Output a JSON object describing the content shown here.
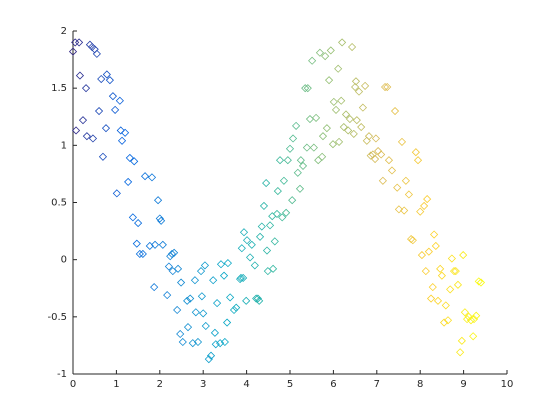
{
  "chart_data": {
    "type": "scatter",
    "marker": "diamond",
    "colormap": [
      "#352a87",
      "#0363e1",
      "#1485d4",
      "#06a7c6",
      "#38b99e",
      "#92bf73",
      "#d9ba56",
      "#fcce2e",
      "#f9fb0e"
    ],
    "xlim": [
      0,
      10
    ],
    "ylim": [
      -1,
      2
    ],
    "xticks": [
      0,
      1,
      2,
      3,
      4,
      5,
      6,
      7,
      8,
      9,
      10
    ],
    "yticks": [
      -1,
      -0.5,
      0,
      0.5,
      1,
      1.5,
      2
    ],
    "x": [
      0,
      0.05,
      0.14,
      0.39,
      0.44,
      0.5,
      0.55,
      0.07,
      0.16,
      0.3,
      0.23,
      0.32,
      0.46,
      0.6,
      0.65,
      0.78,
      0.85,
      0.69,
      0.76,
      0.92,
      0.97,
      1.08,
      1.01,
      1.1,
      1.2,
      1.13,
      1.27,
      1.31,
      1.41,
      1.38,
      1.47,
      1.5,
      1.54,
      1.61,
      1.66,
      1.77,
      1.82,
      1.87,
      1.89,
      1.96,
      2.0,
      2.03,
      2.07,
      2.17,
      2.21,
      2.24,
      2.28,
      2.33,
      2.3,
      2.4,
      2.42,
      2.47,
      2.49,
      2.53,
      2.63,
      2.65,
      2.7,
      2.76,
      2.81,
      2.83,
      2.88,
      2.95,
      2.97,
      3.0,
      3.04,
      3.06,
      3.13,
      3.18,
      3.23,
      3.27,
      3.29,
      3.32,
      3.39,
      3.41,
      3.48,
      3.5,
      3.55,
      3.57,
      3.62,
      3.71,
      3.76,
      3.85,
      3.87,
      3.92,
      3.89,
      3.94,
      3.99,
      4.01,
      4.08,
      4.12,
      4.19,
      4.22,
      4.26,
      4.29,
      4.31,
      4.35,
      4.4,
      4.45,
      4.47,
      4.49,
      4.54,
      4.59,
      4.61,
      4.65,
      4.7,
      4.72,
      4.77,
      4.82,
      4.86,
      4.91,
      4.95,
      5.0,
      5.05,
      5.07,
      5.14,
      5.18,
      5.23,
      5.25,
      5.3,
      5.35,
      5.39,
      5.41,
      5.46,
      5.51,
      5.55,
      5.6,
      5.65,
      5.69,
      5.74,
      5.76,
      5.81,
      5.85,
      5.9,
      5.94,
      5.99,
      6.01,
      6.06,
      6.11,
      6.13,
      6.18,
      6.2,
      6.24,
      6.29,
      6.34,
      6.38,
      6.43,
      6.47,
      6.5,
      6.54,
      6.52,
      6.59,
      6.64,
      6.68,
      6.73,
      6.77,
      6.82,
      6.86,
      6.91,
      6.96,
      6.98,
      7.03,
      7.1,
      7.14,
      7.19,
      7.24,
      7.28,
      7.35,
      7.42,
      7.47,
      7.51,
      7.58,
      7.63,
      7.67,
      7.74,
      7.79,
      7.83,
      7.9,
      7.95,
      8.0,
      8.04,
      8.09,
      8.13,
      8.16,
      8.2,
      8.25,
      8.29,
      8.32,
      8.36,
      8.41,
      8.46,
      8.5,
      8.55,
      8.59,
      8.64,
      8.69,
      8.73,
      8.78,
      8.82,
      8.87,
      8.92,
      8.96,
      8.99,
      9.03,
      9.08,
      9.12,
      9.17,
      9.22,
      9.24,
      9.29,
      9.35,
      9.4
    ],
    "y": [
      1.82,
      1.9,
      1.9,
      1.88,
      1.86,
      1.84,
      1.8,
      1.13,
      1.61,
      1.5,
      1.22,
      1.08,
      1.06,
      1.3,
      1.58,
      1.62,
      1.57,
      0.9,
      1.15,
      1.43,
      1.31,
      1.39,
      0.58,
      1.13,
      1.11,
      1.04,
      0.68,
      0.89,
      0.86,
      0.37,
      0.14,
      0.32,
      0.05,
      0.05,
      0.73,
      0.12,
      0.72,
      -0.24,
      0.13,
      0.52,
      0.36,
      0.34,
      0.13,
      -0.31,
      -0.06,
      0.03,
      0.05,
      0.06,
      -0.1,
      -0.44,
      -0.08,
      -0.65,
      -0.2,
      -0.72,
      -0.36,
      -0.59,
      -0.34,
      -0.73,
      -0.18,
      -0.46,
      -0.72,
      -0.1,
      -0.32,
      -0.47,
      -0.05,
      -0.58,
      -0.87,
      -0.84,
      -0.18,
      -0.64,
      -0.74,
      -0.38,
      -0.73,
      -0.04,
      -0.14,
      -0.72,
      -0.55,
      -0.03,
      -0.33,
      -0.44,
      -0.42,
      -0.17,
      -0.16,
      -0.16,
      0.1,
      0.24,
      -0.36,
      0.17,
      0.02,
      0.13,
      -0.05,
      -0.34,
      -0.34,
      -0.36,
      0.2,
      0.29,
      0.47,
      0.67,
      0.08,
      -0.1,
      0.3,
      0.38,
      -0.08,
      0.16,
      0.4,
      0.6,
      0.87,
      0.37,
      0.69,
      0.41,
      0.87,
      0.97,
      0.52,
      1.06,
      1.17,
      0.76,
      0.62,
      0.87,
      0.82,
      1.5,
      0.98,
      1.5,
      1.23,
      1.74,
      0.98,
      1.24,
      0.87,
      1.81,
      0.9,
      1.08,
      1.78,
      1.15,
      1.57,
      1.83,
      1.01,
      1.38,
      1.31,
      1.67,
      1.03,
      1.39,
      1.9,
      1.16,
      1.27,
      1.13,
      1.23,
      1.86,
      1.1,
      1.51,
      1.22,
      1.56,
      1.47,
      1.16,
      1.33,
      1.52,
      1.04,
      1.08,
      0.91,
      0.92,
      0.88,
      1.06,
      0.95,
      0.92,
      0.69,
      1.51,
      1.51,
      0.87,
      0.78,
      1.3,
      0.63,
      0.44,
      1.03,
      0.43,
      0.69,
      0.57,
      0.18,
      0.17,
      0.94,
      0.87,
      0.42,
      0.04,
      0.47,
      -0.1,
      0.53,
      0.07,
      -0.34,
      -0.24,
      0.22,
      0.12,
      -0.36,
      -0.08,
      -0.14,
      -0.55,
      -0.4,
      -0.53,
      -0.26,
      0.01,
      -0.1,
      -0.1,
      -0.22,
      -0.81,
      -0.71,
      0.04,
      -0.46,
      -0.52,
      -0.5,
      -0.53,
      -0.67,
      -0.52,
      -0.49,
      -0.19,
      -0.2
    ]
  }
}
